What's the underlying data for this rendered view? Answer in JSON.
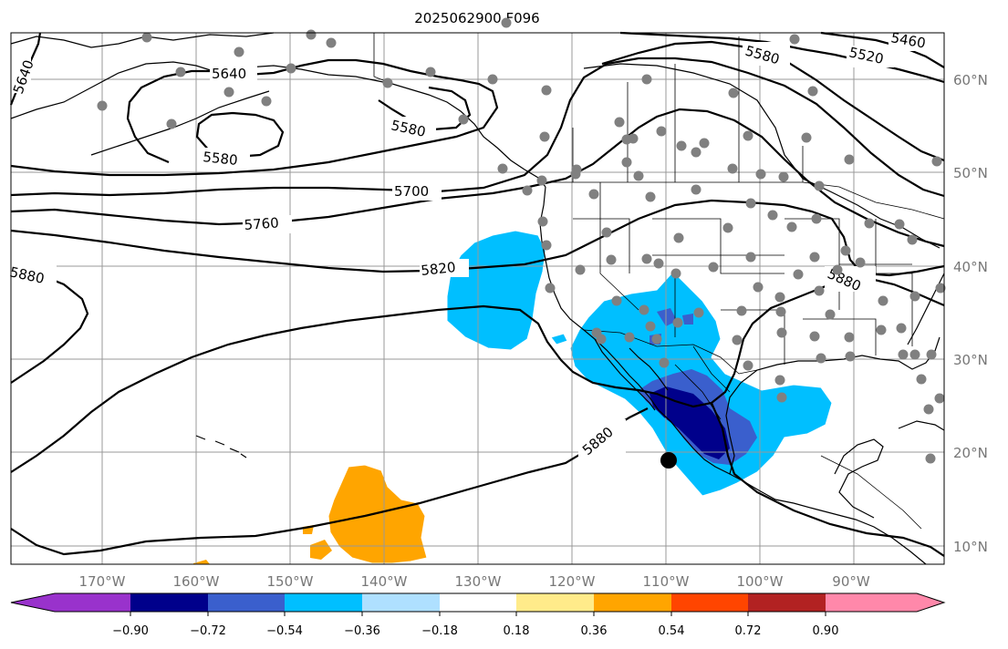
{
  "title": "2025062900 F096",
  "lon_labels": [
    "170°W",
    "160°W",
    "150°W",
    "140°W",
    "130°W",
    "120°W",
    "110°W",
    "100°W",
    "90°W"
  ],
  "lat_labels": [
    "60°N",
    "50°N",
    "40°N",
    "30°N",
    "20°N",
    "10°N"
  ],
  "colorbar": {
    "colors": [
      "#9932cc",
      "#00008b",
      "#3a5fcd",
      "#00bfff",
      "#afe0ff",
      "#ffffff",
      "#ffeb8a",
      "#ffa500",
      "#ff4500",
      "#b22222",
      "#ff88aa"
    ],
    "tick_labels": [
      "−0.90",
      "−0.72",
      "−0.54",
      "−0.36",
      "−0.18",
      "0.18",
      "0.36",
      "0.54",
      "0.72",
      "0.90"
    ]
  },
  "contour_labels": [
    {
      "id": "c5640a",
      "text": "5640"
    },
    {
      "id": "c5640b",
      "text": "5640"
    },
    {
      "id": "c5580a",
      "text": "5580"
    },
    {
      "id": "c5580b",
      "text": "5580"
    },
    {
      "id": "c5580c",
      "text": "5580"
    },
    {
      "id": "c5520",
      "text": "5520"
    },
    {
      "id": "c5460",
      "text": "5460"
    },
    {
      "id": "c5700",
      "text": "5700"
    },
    {
      "id": "c5760",
      "text": "5760"
    },
    {
      "id": "c5820",
      "text": "5820"
    },
    {
      "id": "c5880a",
      "text": "5880"
    },
    {
      "id": "c5880b",
      "text": "5880"
    },
    {
      "id": "c5880c",
      "text": "5880"
    }
  ],
  "palette": {
    "deep_blue": "#00008b",
    "mid_blue": "#3a5fcd",
    "light_blue": "#00bfff",
    "orange": "#ffa500",
    "station": "#808080"
  }
}
